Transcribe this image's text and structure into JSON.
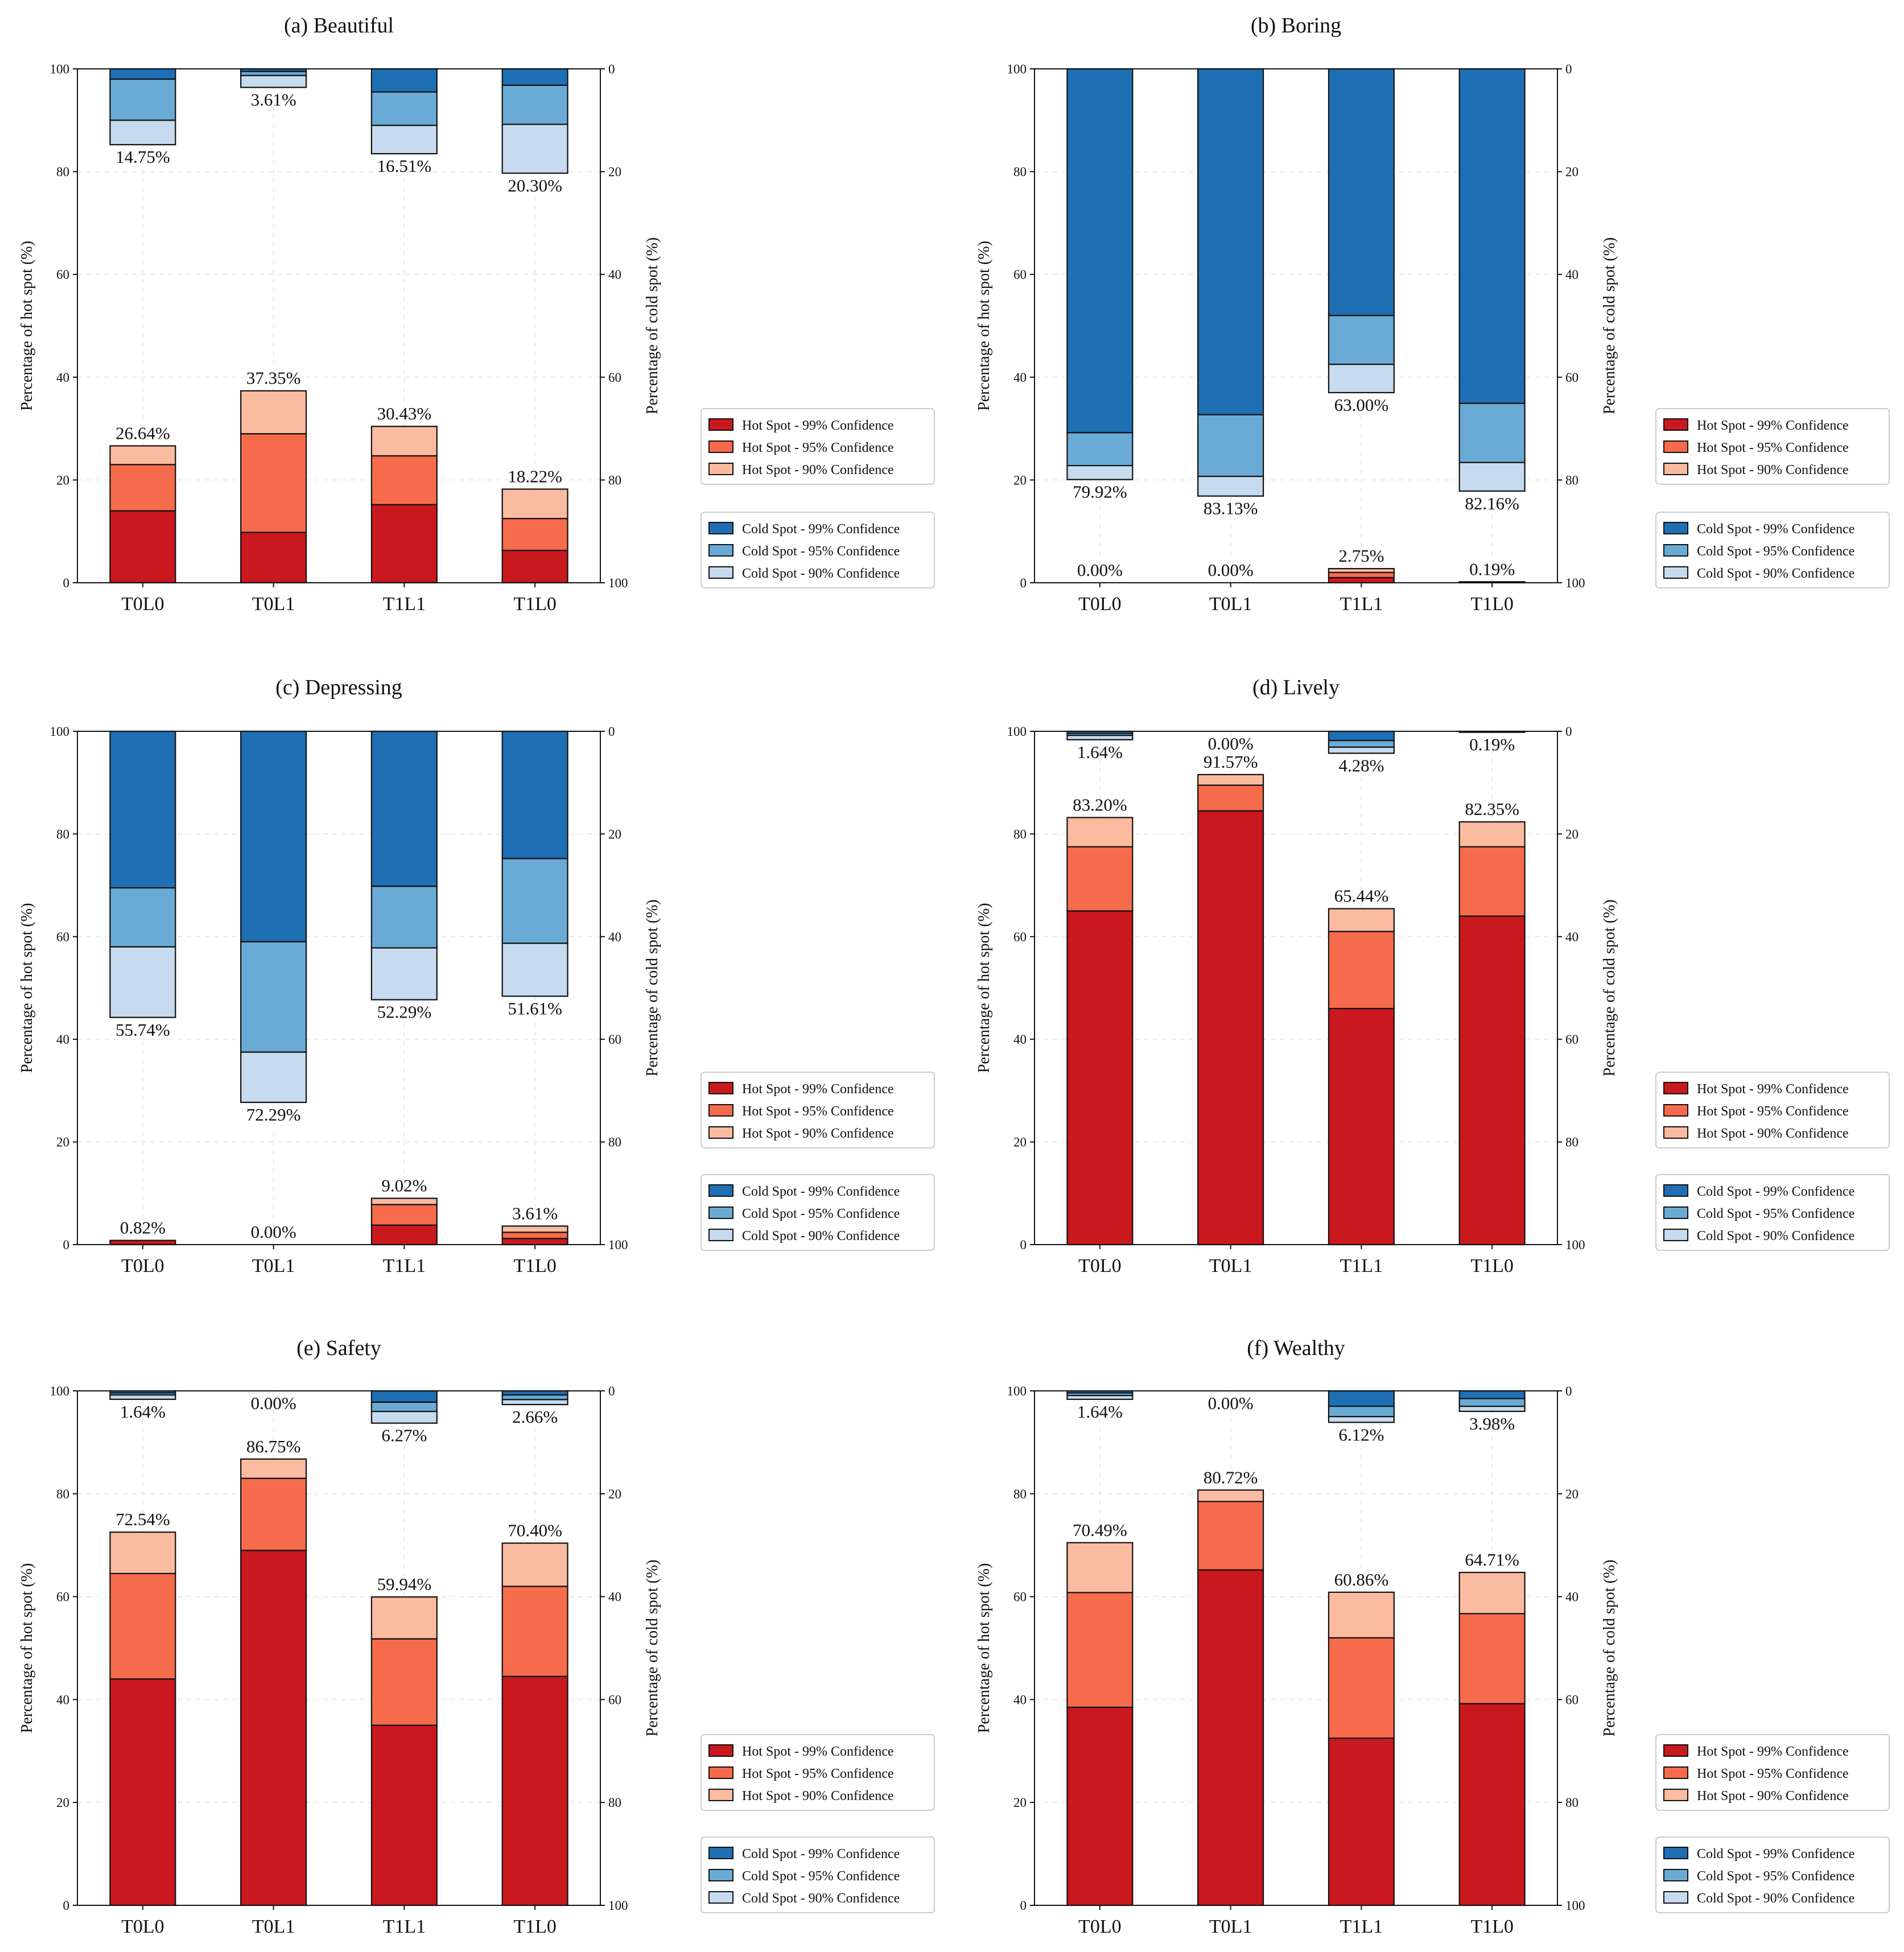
{
  "legend_hot": [
    "Hot Spot - 99% Confidence",
    "Hot Spot - 95% Confidence",
    "Hot Spot - 90% Confidence"
  ],
  "legend_cold": [
    "Cold Spot - 99% Confidence",
    "Cold Spot - 95% Confidence",
    "Cold Spot - 90% Confidence"
  ],
  "colors": {
    "hot": [
      "#c9181e",
      "#f66b4b",
      "#fbbba0"
    ],
    "cold": [
      "#1f6fb4",
      "#6aabd6",
      "#c6dbef"
    ],
    "edge": "#111111"
  },
  "chart_data": [
    {
      "type": "bar",
      "title": "(a) Beautiful",
      "categories": [
        "T0L0",
        "T0L1",
        "T1L1",
        "T1L0"
      ],
      "ylabel": "Percentage of hot spot (%)",
      "y2label": "Percentage of cold spot (%)",
      "ylim": [
        0,
        100
      ],
      "y2lim": [
        100,
        0
      ],
      "yticks": [
        "0",
        "20",
        "40",
        "60",
        "80",
        "100"
      ],
      "y2ticks": [
        "100",
        "80",
        "60",
        "40",
        "20",
        "0"
      ],
      "hot_series": [
        {
          "name": "Hot Spot - 99% Confidence",
          "values": [
            14.0,
            9.8,
            15.2,
            6.3
          ]
        },
        {
          "name": "Hot Spot - 95% Confidence",
          "values": [
            9.0,
            19.2,
            9.5,
            6.2
          ]
        },
        {
          "name": "Hot Spot - 90% Confidence",
          "values": [
            3.64,
            8.35,
            5.73,
            5.72
          ]
        }
      ],
      "cold_series": [
        {
          "name": "Cold Spot - 99% Confidence",
          "values": [
            2.0,
            0.5,
            4.5,
            3.2
          ]
        },
        {
          "name": "Cold Spot - 95% Confidence",
          "values": [
            8.0,
            0.8,
            6.5,
            7.6
          ]
        },
        {
          "name": "Cold Spot - 90% Confidence",
          "values": [
            4.75,
            2.31,
            5.51,
            9.5
          ]
        }
      ],
      "hot_total_labels": [
        "26.64%",
        "37.35%",
        "30.43%",
        "18.22%"
      ],
      "cold_total_labels": [
        "14.75%",
        "3.61%",
        "16.51%",
        "20.30%"
      ]
    },
    {
      "type": "bar",
      "title": "(b) Boring",
      "categories": [
        "T0L0",
        "T0L1",
        "T1L1",
        "T1L0"
      ],
      "ylabel": "Percentage of hot spot (%)",
      "y2label": "Percentage of cold spot (%)",
      "ylim": [
        0,
        100
      ],
      "y2lim": [
        100,
        0
      ],
      "yticks": [
        "0",
        "20",
        "40",
        "60",
        "80",
        "100"
      ],
      "y2ticks": [
        "100",
        "80",
        "60",
        "40",
        "20",
        "0"
      ],
      "hot_series": [
        {
          "name": "Hot Spot - 99% Confidence",
          "values": [
            0,
            0,
            1.0,
            0.19
          ]
        },
        {
          "name": "Hot Spot - 95% Confidence",
          "values": [
            0,
            0,
            1.0,
            0
          ]
        },
        {
          "name": "Hot Spot - 90% Confidence",
          "values": [
            0,
            0,
            0.75,
            0
          ]
        }
      ],
      "cold_series": [
        {
          "name": "Cold Spot - 99% Confidence",
          "values": [
            70.8,
            67.3,
            48.0,
            65.1
          ]
        },
        {
          "name": "Cold Spot - 95% Confidence",
          "values": [
            6.4,
            12.0,
            9.5,
            11.5
          ]
        },
        {
          "name": "Cold Spot - 90% Confidence",
          "values": [
            2.72,
            3.83,
            5.5,
            5.56
          ]
        }
      ],
      "hot_total_labels": [
        "0.00%",
        "0.00%",
        "2.75%",
        "0.19%"
      ],
      "cold_total_labels": [
        "79.92%",
        "83.13%",
        "63.00%",
        "82.16%"
      ]
    },
    {
      "type": "bar",
      "title": "(c) Depressing",
      "categories": [
        "T0L0",
        "T0L1",
        "T1L1",
        "T1L0"
      ],
      "ylabel": "Percentage of hot spot (%)",
      "y2label": "Percentage of cold spot (%)",
      "ylim": [
        0,
        100
      ],
      "y2lim": [
        100,
        0
      ],
      "yticks": [
        "0",
        "20",
        "40",
        "60",
        "80",
        "100"
      ],
      "y2ticks": [
        "100",
        "80",
        "60",
        "40",
        "20",
        "0"
      ],
      "hot_series": [
        {
          "name": "Hot Spot - 99% Confidence",
          "values": [
            0.82,
            0,
            3.8,
            1.2
          ]
        },
        {
          "name": "Hot Spot - 95% Confidence",
          "values": [
            0,
            0,
            4.0,
            1.2
          ]
        },
        {
          "name": "Hot Spot - 90% Confidence",
          "values": [
            0,
            0,
            1.22,
            1.21
          ]
        }
      ],
      "cold_series": [
        {
          "name": "Cold Spot - 99% Confidence",
          "values": [
            30.5,
            41.0,
            30.2,
            24.8
          ]
        },
        {
          "name": "Cold Spot - 95% Confidence",
          "values": [
            11.5,
            21.5,
            12.0,
            16.5
          ]
        },
        {
          "name": "Cold Spot - 90% Confidence",
          "values": [
            13.74,
            9.79,
            10.09,
            10.31
          ]
        }
      ],
      "hot_total_labels": [
        "0.82%",
        "0.00%",
        "9.02%",
        "3.61%"
      ],
      "cold_total_labels": [
        "55.74%",
        "72.29%",
        "52.29%",
        "51.61%"
      ]
    },
    {
      "type": "bar",
      "title": "(d) Lively",
      "categories": [
        "T0L0",
        "T0L1",
        "T1L1",
        "T1L0"
      ],
      "ylabel": "Percentage of hot spot (%)",
      "y2label": "Percentage of cold spot (%)",
      "ylim": [
        0,
        100
      ],
      "y2lim": [
        100,
        0
      ],
      "yticks": [
        "0",
        "20",
        "40",
        "60",
        "80",
        "100"
      ],
      "y2ticks": [
        "100",
        "80",
        "60",
        "40",
        "20",
        "0"
      ],
      "hot_series": [
        {
          "name": "Hot Spot - 99% Confidence",
          "values": [
            65.0,
            84.5,
            46.0,
            64.0
          ]
        },
        {
          "name": "Hot Spot - 95% Confidence",
          "values": [
            12.5,
            5.0,
            15.0,
            13.5
          ]
        },
        {
          "name": "Hot Spot - 90% Confidence",
          "values": [
            5.7,
            2.07,
            4.44,
            4.85
          ]
        }
      ],
      "cold_series": [
        {
          "name": "Cold Spot - 99% Confidence",
          "values": [
            0.4,
            0,
            1.8,
            0.19
          ]
        },
        {
          "name": "Cold Spot - 95% Confidence",
          "values": [
            0.4,
            0,
            1.3,
            0
          ]
        },
        {
          "name": "Cold Spot - 90% Confidence",
          "values": [
            0.84,
            0,
            1.18,
            0
          ]
        }
      ],
      "hot_total_labels": [
        "83.20%",
        "91.57%",
        "65.44%",
        "82.35%"
      ],
      "cold_total_labels": [
        "1.64%",
        "0.00%",
        "4.28%",
        "0.19%"
      ]
    },
    {
      "type": "bar",
      "title": "(e) Safety",
      "categories": [
        "T0L0",
        "T0L1",
        "T1L1",
        "T1L0"
      ],
      "ylabel": "Percentage of hot spot (%)",
      "y2label": "Percentage of cold spot (%)",
      "ylim": [
        0,
        100
      ],
      "y2lim": [
        100,
        0
      ],
      "yticks": [
        "0",
        "20",
        "40",
        "60",
        "80",
        "100"
      ],
      "y2ticks": [
        "100",
        "80",
        "60",
        "40",
        "20",
        "0"
      ],
      "hot_series": [
        {
          "name": "Hot Spot - 99% Confidence",
          "values": [
            44.0,
            69.0,
            35.0,
            44.5
          ]
        },
        {
          "name": "Hot Spot - 95% Confidence",
          "values": [
            20.5,
            14.0,
            16.8,
            17.5
          ]
        },
        {
          "name": "Hot Spot - 90% Confidence",
          "values": [
            8.04,
            3.75,
            8.14,
            8.4
          ]
        }
      ],
      "cold_series": [
        {
          "name": "Cold Spot - 99% Confidence",
          "values": [
            0.4,
            0,
            2.2,
            0.8
          ]
        },
        {
          "name": "Cold Spot - 95% Confidence",
          "values": [
            0.4,
            0,
            1.8,
            0.9
          ]
        },
        {
          "name": "Cold Spot - 90% Confidence",
          "values": [
            0.84,
            0,
            2.27,
            0.96
          ]
        }
      ],
      "hot_total_labels": [
        "72.54%",
        "86.75%",
        "59.94%",
        "70.40%"
      ],
      "cold_total_labels": [
        "1.64%",
        "0.00%",
        "6.27%",
        "2.66%"
      ]
    },
    {
      "type": "bar",
      "title": "(f) Wealthy",
      "categories": [
        "T0L0",
        "T0L1",
        "T1L1",
        "T1L0"
      ],
      "ylabel": "Percentage of hot spot (%)",
      "y2label": "Percentage of cold spot (%)",
      "ylim": [
        0,
        100
      ],
      "y2lim": [
        100,
        0
      ],
      "yticks": [
        "0",
        "20",
        "40",
        "60",
        "80",
        "100"
      ],
      "y2ticks": [
        "100",
        "80",
        "60",
        "40",
        "20",
        "0"
      ],
      "hot_series": [
        {
          "name": "Hot Spot - 99% Confidence",
          "values": [
            38.5,
            65.2,
            32.5,
            39.2
          ]
        },
        {
          "name": "Hot Spot - 95% Confidence",
          "values": [
            22.3,
            13.3,
            19.5,
            17.5
          ]
        },
        {
          "name": "Hot Spot - 90% Confidence",
          "values": [
            9.69,
            2.22,
            8.86,
            8.01
          ]
        }
      ],
      "cold_series": [
        {
          "name": "Cold Spot - 99% Confidence",
          "values": [
            0.4,
            0,
            3.0,
            1.5
          ]
        },
        {
          "name": "Cold Spot - 95% Confidence",
          "values": [
            0.5,
            0,
            2.0,
            1.5
          ]
        },
        {
          "name": "Cold Spot - 90% Confidence",
          "values": [
            0.74,
            0,
            1.12,
            0.98
          ]
        }
      ],
      "hot_total_labels": [
        "70.49%",
        "80.72%",
        "60.86%",
        "64.71%"
      ],
      "cold_total_labels": [
        "1.64%",
        "0.00%",
        "6.12%",
        "3.98%"
      ]
    }
  ]
}
